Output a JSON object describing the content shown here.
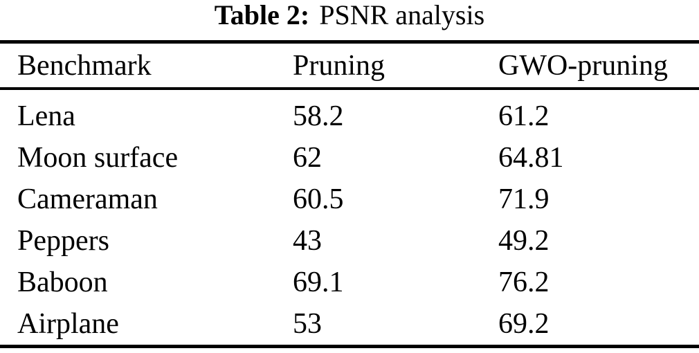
{
  "caption": {
    "label": "Table 2:",
    "title": "PSNR analysis"
  },
  "table": {
    "headers": {
      "benchmark": "Benchmark",
      "pruning": "Pruning",
      "gwo": "GWO-pruning"
    },
    "rows": [
      {
        "benchmark": "Lena",
        "pruning": "58.2",
        "gwo": "61.2"
      },
      {
        "benchmark": "Moon surface",
        "pruning": "62",
        "gwo": "64.81"
      },
      {
        "benchmark": "Cameraman",
        "pruning": "60.5",
        "gwo": "71.9"
      },
      {
        "benchmark": "Peppers",
        "pruning": "43",
        "gwo": "49.2"
      },
      {
        "benchmark": "Baboon",
        "pruning": "69.1",
        "gwo": "76.2"
      },
      {
        "benchmark": "Airplane",
        "pruning": "53",
        "gwo": "69.2"
      }
    ]
  },
  "colors": {
    "text": "#000000",
    "background": "#ffffff",
    "rule": "#000000"
  }
}
